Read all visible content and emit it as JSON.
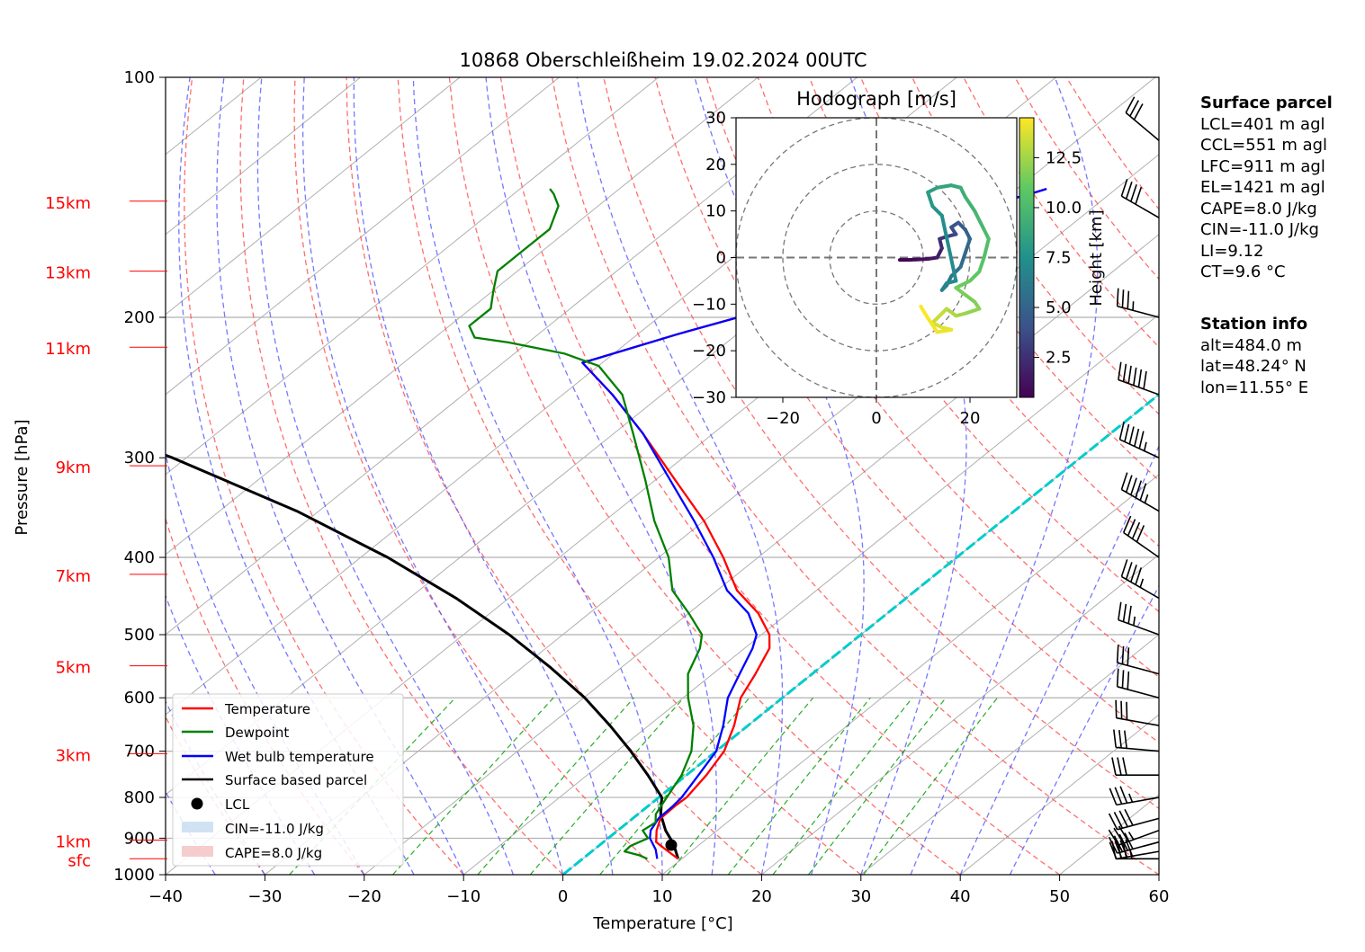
{
  "chart_data": [
    {
      "type": "line",
      "title": "10868 Oberschleißheim 19.02.2024 00UTC",
      "xlabel": "Temperature [°C]",
      "ylabel": "Pressure [hPa]",
      "xlim": [
        -40,
        60
      ],
      "ylim": [
        1000,
        100
      ],
      "yscale": "log",
      "skew": true,
      "grid": true,
      "x_ticks": [
        "−40",
        "−30",
        "−20",
        "−10",
        "0",
        "10",
        "20",
        "30",
        "40",
        "50",
        "60"
      ],
      "p_ticks": [
        "100",
        "200",
        "300",
        "400",
        "500",
        "600",
        "700",
        "800",
        "900",
        "1000"
      ],
      "height_labels": [
        {
          "label": "15km",
          "p": 143
        },
        {
          "label": "13km",
          "p": 175
        },
        {
          "label": "11km",
          "p": 218
        },
        {
          "label": "9km",
          "p": 307
        },
        {
          "label": "7km",
          "p": 420
        },
        {
          "label": "5km",
          "p": 547
        },
        {
          "label": "3km",
          "p": 705
        },
        {
          "label": "1km",
          "p": 905
        },
        {
          "label": "sfc",
          "p": 955
        }
      ],
      "series": [
        {
          "name": "Temperature",
          "color": "#ff0000",
          "points": [
            [
              9.6,
              955
            ],
            [
              7.2,
              930
            ],
            [
              5.3,
              910
            ],
            [
              3.9,
              880
            ],
            [
              2.8,
              850
            ],
            [
              2.7,
              820
            ],
            [
              2.8,
              800
            ],
            [
              2.0,
              750
            ],
            [
              0.8,
              700
            ],
            [
              -1.4,
              650
            ],
            [
              -4.2,
              600
            ],
            [
              -5.7,
              560
            ],
            [
              -7.5,
              520
            ],
            [
              -9.2,
              500
            ],
            [
              -13,
              470
            ],
            [
              -18,
              440
            ],
            [
              -23.5,
              400
            ],
            [
              -30,
              360
            ],
            [
              -38,
              320
            ],
            [
              -47,
              280
            ],
            [
              -55,
              250
            ],
            [
              -62,
              228
            ],
            [
              -61,
              225
            ],
            [
              -56,
              210
            ],
            [
              -52,
              200
            ],
            [
              -53,
              190
            ],
            [
              -52,
              182
            ],
            [
              -52,
              172
            ],
            [
              -50,
              165
            ],
            [
              -47,
              160
            ],
            [
              -47,
              155
            ],
            [
              -44,
              150
            ],
            [
              -41,
              145
            ],
            [
              -38,
              140
            ],
            [
              -37,
              138
            ]
          ]
        },
        {
          "name": "Dewpoint",
          "color": "#008000",
          "points": [
            [
              6.5,
              955
            ],
            [
              5.2,
              945
            ],
            [
              3.3,
              935
            ],
            [
              3.2,
              920
            ],
            [
              4.0,
              900
            ],
            [
              2.5,
              880
            ],
            [
              2.8,
              860
            ],
            [
              1.8,
              840
            ],
            [
              0.8,
              800
            ],
            [
              -0.5,
              750
            ],
            [
              -2.5,
              700
            ],
            [
              -5.5,
              650
            ],
            [
              -9.5,
              600
            ],
            [
              -12.5,
              560
            ],
            [
              -14.5,
              520
            ],
            [
              -16,
              500
            ],
            [
              -20,
              470
            ],
            [
              -24.5,
              440
            ],
            [
              -29,
              400
            ],
            [
              -35,
              360
            ],
            [
              -41,
              320
            ],
            [
              -48,
              280
            ],
            [
              -54,
              250
            ],
            [
              -60,
              230
            ],
            [
              -65,
              222
            ],
            [
              -72,
              215
            ],
            [
              -76,
              212
            ],
            [
              -78,
              205
            ],
            [
              -78,
              195
            ],
            [
              -80,
              185
            ],
            [
              -82,
              175
            ],
            [
              -82,
              165
            ],
            [
              -82,
              155
            ],
            [
              -84,
              145
            ],
            [
              -86,
              140
            ],
            [
              -87,
              138
            ]
          ]
        },
        {
          "name": "Wet bulb temperature",
          "color": "#0000ff",
          "points": [
            [
              7.5,
              955
            ],
            [
              6.2,
              930
            ],
            [
              4.2,
              900
            ],
            [
              3.3,
              880
            ],
            [
              2.6,
              850
            ],
            [
              2.5,
              820
            ],
            [
              2.3,
              800
            ],
            [
              1.2,
              750
            ],
            [
              0.0,
              700
            ],
            [
              -2.5,
              650
            ],
            [
              -5.5,
              600
            ],
            [
              -7.3,
              560
            ],
            [
              -9.2,
              520
            ],
            [
              -10.5,
              500
            ],
            [
              -14,
              470
            ],
            [
              -19,
              440
            ],
            [
              -24.5,
              400
            ],
            [
              -31,
              360
            ],
            [
              -38.5,
              320
            ],
            [
              -47,
              280
            ],
            [
              -55,
              250
            ],
            [
              -62,
              228
            ],
            [
              -61,
              225
            ],
            [
              -56,
              210
            ],
            [
              -52,
              200
            ],
            [
              -53,
              190
            ],
            [
              -52,
              182
            ],
            [
              -52,
              172
            ],
            [
              -50,
              165
            ],
            [
              -47,
              160
            ],
            [
              -47,
              155
            ],
            [
              -44,
              150
            ],
            [
              -41,
              145
            ],
            [
              -38,
              140
            ],
            [
              -37,
              138
            ]
          ]
        },
        {
          "name": "Surface based parcel",
          "color": "#000000",
          "points": [
            [
              9.6,
              955
            ],
            [
              7.3,
              915
            ],
            [
              4.8,
              880
            ],
            [
              2.3,
              840
            ],
            [
              0.3,
              800
            ],
            [
              -3.9,
              750
            ],
            [
              -8.6,
              700
            ],
            [
              -13.9,
              650
            ],
            [
              -19.9,
              600
            ],
            [
              -27.1,
              550
            ],
            [
              -35.4,
              500
            ],
            [
              -45.3,
              450
            ],
            [
              -57.3,
              400
            ],
            [
              -72.2,
              350
            ],
            [
              -91.4,
              300
            ],
            [
              -116.2,
              250
            ],
            [
              -148.5,
              200
            ],
            [
              -174,
              170
            ]
          ]
        }
      ],
      "lcl": {
        "name": "LCL",
        "t": 7.2,
        "p": 918
      },
      "legend": {
        "placement": "lower-left",
        "entries": [
          "Temperature",
          "Dewpoint",
          "Wet bulb temperature",
          "Surface based parcel",
          "LCL",
          "CIN=-11.0 J/kg",
          "CAPE=8.0 J/kg"
        ]
      },
      "isotherm_zero_color": "#00cccc",
      "wind_barbs": [
        {
          "p": 955,
          "dir": 270,
          "kt": 35
        },
        {
          "p": 935,
          "dir": 260,
          "kt": 40
        },
        {
          "p": 910,
          "dir": 255,
          "kt": 40
        },
        {
          "p": 880,
          "dir": 250,
          "kt": 35
        },
        {
          "p": 850,
          "dir": 255,
          "kt": 40
        },
        {
          "p": 800,
          "dir": 260,
          "kt": 35
        },
        {
          "p": 750,
          "dir": 270,
          "kt": 30
        },
        {
          "p": 700,
          "dir": 275,
          "kt": 30
        },
        {
          "p": 650,
          "dir": 280,
          "kt": 30
        },
        {
          "p": 600,
          "dir": 285,
          "kt": 30
        },
        {
          "p": 560,
          "dir": 285,
          "kt": 30
        },
        {
          "p": 500,
          "dir": 290,
          "kt": 35
        },
        {
          "p": 450,
          "dir": 300,
          "kt": 45
        },
        {
          "p": 400,
          "dir": 305,
          "kt": 40
        },
        {
          "p": 350,
          "dir": 300,
          "kt": 55
        },
        {
          "p": 300,
          "dir": 295,
          "kt": 55
        },
        {
          "p": 250,
          "dir": 290,
          "kt": 60
        },
        {
          "p": 200,
          "dir": 285,
          "kt": 35
        },
        {
          "p": 150,
          "dir": 300,
          "kt": 40
        },
        {
          "p": 120,
          "dir": 310,
          "kt": 30
        }
      ]
    },
    {
      "type": "line",
      "title": "Hodograph [m/s]",
      "xlim": [
        -30,
        30
      ],
      "ylim": [
        -30,
        30
      ],
      "x_ticks": [
        "−20",
        "0",
        "20"
      ],
      "y_ticks": [
        "30",
        "20",
        "10",
        "0",
        "−10",
        "−20",
        "−30"
      ],
      "rings": [
        10,
        20,
        30
      ],
      "colorbar": {
        "label": "Height [km]",
        "ticks": [
          "2.5",
          "5.0",
          "7.5",
          "10.0",
          "12.5"
        ],
        "range": [
          0.5,
          14.5
        ],
        "colormap": "viridis"
      },
      "points": [
        [
          5,
          -0.5,
          0.5
        ],
        [
          7,
          -0.5,
          0.8
        ],
        [
          9,
          -0.4,
          1.0
        ],
        [
          11,
          -0.3,
          1.2
        ],
        [
          13,
          0.0,
          1.5
        ],
        [
          14,
          2,
          2.0
        ],
        [
          13.5,
          4,
          2.5
        ],
        [
          15,
          4.5,
          3.0
        ],
        [
          17,
          5,
          3.5
        ],
        [
          16,
          6.5,
          4.0
        ],
        [
          17.5,
          7.5,
          4.3
        ],
        [
          19,
          6,
          4.6
        ],
        [
          20,
          4,
          5.0
        ],
        [
          19,
          1,
          5.3
        ],
        [
          18,
          -2,
          5.6
        ],
        [
          16,
          -4,
          5.9
        ],
        [
          15,
          -6,
          6.2
        ],
        [
          14,
          -7,
          6.5
        ],
        [
          15,
          -5.5,
          6.8
        ],
        [
          17,
          -5,
          7.1
        ],
        [
          14,
          9,
          7.5
        ],
        [
          12,
          11,
          7.8
        ],
        [
          11,
          14,
          8.1
        ],
        [
          13,
          15,
          8.4
        ],
        [
          16,
          15.5,
          8.7
        ],
        [
          18,
          15,
          9.0
        ],
        [
          19,
          13,
          9.3
        ],
        [
          21,
          10,
          9.6
        ],
        [
          23,
          6,
          9.9
        ],
        [
          24,
          4,
          10.2
        ],
        [
          23,
          0,
          10.5
        ],
        [
          22,
          -3,
          10.8
        ],
        [
          20,
          -5,
          11.1
        ],
        [
          17,
          -6.5,
          11.4
        ],
        [
          21,
          -9.5,
          11.7
        ],
        [
          22,
          -11,
          12.0
        ],
        [
          19,
          -12,
          12.3
        ],
        [
          17,
          -12.5,
          12.6
        ],
        [
          15,
          -11,
          12.9
        ],
        [
          14,
          -12,
          13.2
        ],
        [
          12,
          -14,
          13.5
        ],
        [
          14,
          -15,
          13.8
        ],
        [
          16,
          -15.5,
          14.0
        ],
        [
          13,
          -16,
          14.2
        ],
        [
          11,
          -13,
          14.4
        ],
        [
          9.5,
          -10.5,
          14.5
        ]
      ]
    }
  ],
  "side_info": {
    "surface_header": "Surface parcel",
    "surface_lines": [
      "LCL=401 m agl",
      "CCL=551 m agl",
      "LFC=911 m agl",
      "EL=1421 m agl",
      "CAPE=8.0 J/kg",
      "CIN=-11.0 J/kg",
      "LI=9.12",
      "CT=9.6 °C"
    ],
    "station_header": "Station info",
    "station_lines": [
      "alt=484.0 m",
      "lat=48.24° N",
      "lon=11.55° E"
    ]
  }
}
